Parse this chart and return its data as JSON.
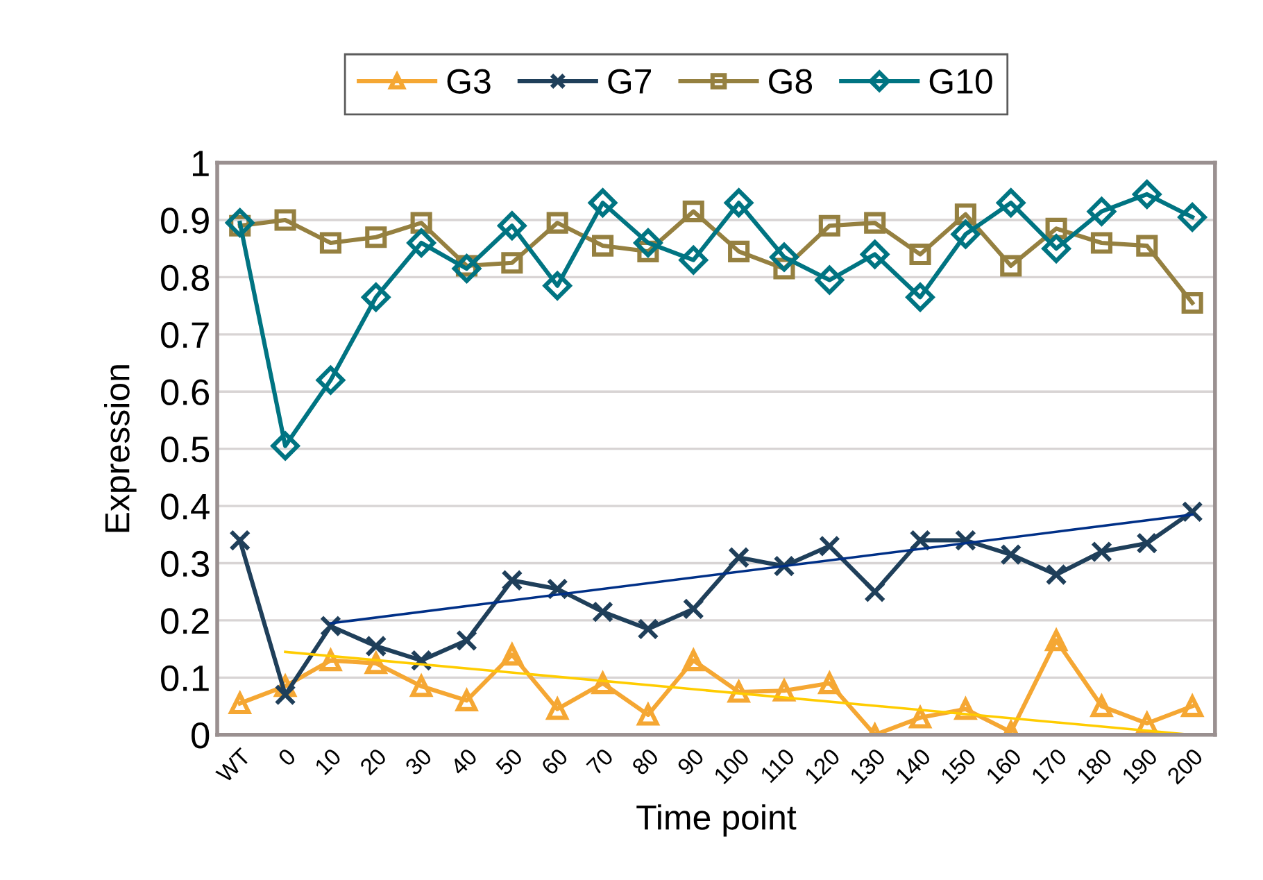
{
  "chart_data": {
    "type": "line",
    "xlabel": "Time point",
    "ylabel": "Expression",
    "categories": [
      "WT",
      "0",
      "10",
      "20",
      "30",
      "40",
      "50",
      "60",
      "70",
      "80",
      "90",
      "100",
      "110",
      "120",
      "130",
      "140",
      "150",
      "160",
      "170",
      "180",
      "190",
      "200"
    ],
    "series": [
      {
        "name": "G3",
        "color": "#f5a733",
        "marker": "triangle",
        "values": [
          0.055,
          0.085,
          0.13,
          0.125,
          0.085,
          0.06,
          0.14,
          0.045,
          0.09,
          0.035,
          0.13,
          0.075,
          0.077,
          0.09,
          0,
          0.03,
          0.045,
          0.005,
          0.165,
          0.05,
          0.02,
          0.05
        ]
      },
      {
        "name": "G7",
        "color": "#1f3f5a",
        "marker": "cross",
        "values": [
          0.34,
          0.07,
          0.19,
          0.155,
          0.13,
          0.165,
          0.27,
          0.255,
          0.215,
          0.185,
          0.22,
          0.31,
          0.295,
          0.33,
          0.25,
          0.34,
          0.34,
          0.315,
          0.28,
          0.32,
          0.335,
          0.39
        ]
      },
      {
        "name": "G8",
        "color": "#958040",
        "marker": "square",
        "values": [
          0.89,
          0.9,
          0.86,
          0.87,
          0.895,
          0.82,
          0.825,
          0.895,
          0.855,
          0.845,
          0.915,
          0.845,
          0.815,
          0.89,
          0.895,
          0.84,
          0.91,
          0.82,
          0.885,
          0.86,
          0.855,
          0.755
        ]
      },
      {
        "name": "G10",
        "color": "#007482",
        "marker": "diamond",
        "values": [
          0.895,
          0.505,
          0.62,
          0.765,
          0.86,
          0.815,
          0.89,
          0.785,
          0.93,
          0.86,
          0.83,
          0.93,
          0.835,
          0.795,
          0.84,
          0.765,
          0.875,
          0.93,
          0.85,
          0.915,
          0.945,
          0.905
        ]
      },
      {
        "color": "#003087",
        "marker": "none",
        "x": [
          "10",
          "200"
        ],
        "values": [
          0.195,
          0.385
        ]
      },
      {
        "color": "#ffcc00",
        "marker": "none",
        "x": [
          "0",
          "200"
        ],
        "values": [
          0.145,
          0
        ]
      }
    ],
    "ylim": [
      0,
      1
    ],
    "yticks": [
      0,
      0.1,
      0.2,
      0.3,
      0.4,
      0.5,
      0.6,
      0.7,
      0.8,
      0.9,
      1
    ],
    "grid": "y",
    "legend": "top",
    "line_style": "solid"
  }
}
